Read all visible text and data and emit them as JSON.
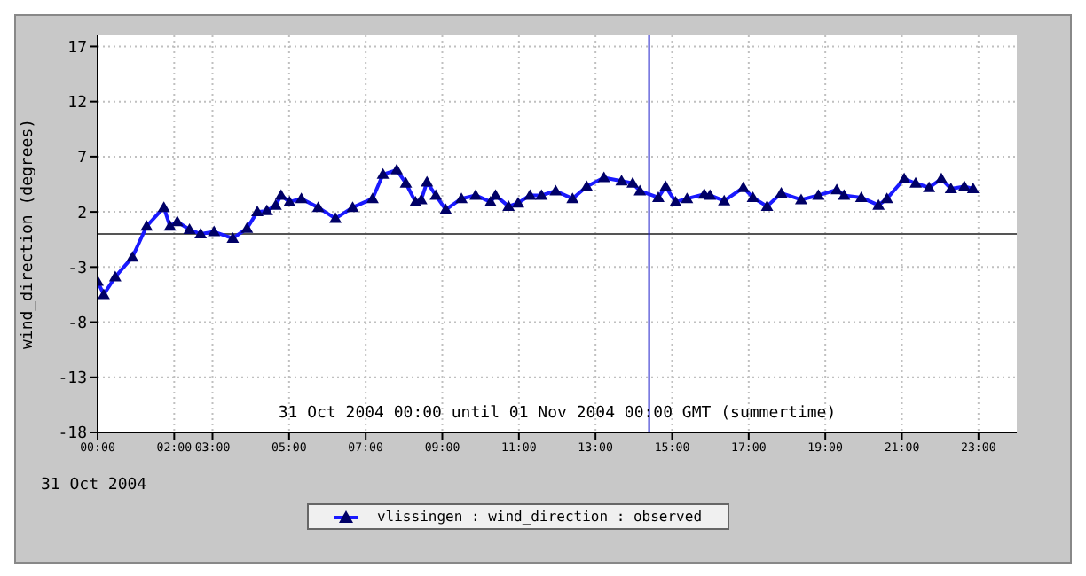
{
  "chart_data": {
    "type": "line",
    "ylabel": "wind_direction (degrees)",
    "annotations": [
      "31 Oct 2004 00:00 until 01 Nov 2004 00:00 GMT (summertime)",
      "31 Oct 2004"
    ],
    "x": [
      0.0,
      0.16,
      0.46,
      0.91,
      1.28,
      1.73,
      1.89,
      2.08,
      2.4,
      2.69,
      3.04,
      3.53,
      3.9,
      4.17,
      4.42,
      4.65,
      4.79,
      5.01,
      5.32,
      5.76,
      6.21,
      6.66,
      7.18,
      7.45,
      7.81,
      8.05,
      8.3,
      8.45,
      8.6,
      8.83,
      9.09,
      9.5,
      9.87,
      10.26,
      10.39,
      10.73,
      10.98,
      11.29,
      11.59,
      11.96,
      12.4,
      12.77,
      13.22,
      13.68,
      13.97,
      14.16,
      14.64,
      14.83,
      15.09,
      15.39,
      15.84,
      15.99,
      16.36,
      16.86,
      17.11,
      17.48,
      17.85,
      18.37,
      18.82,
      19.3,
      19.49,
      19.94,
      20.39,
      20.61,
      21.06,
      21.36,
      21.71,
      22.03,
      22.28,
      22.63,
      22.86
    ],
    "series": [
      {
        "name": "vlissingen : wind_direction : observed",
        "color": "#1a1aff",
        "values": [
          -4.3,
          -5.5,
          -3.9,
          -2.1,
          0.7,
          2.4,
          0.7,
          1.1,
          0.4,
          0.0,
          0.2,
          -0.4,
          0.5,
          2.0,
          2.1,
          2.6,
          3.5,
          2.9,
          3.2,
          2.4,
          1.4,
          2.4,
          3.2,
          5.4,
          5.8,
          4.6,
          2.9,
          3.1,
          4.7,
          3.5,
          2.2,
          3.2,
          3.5,
          2.9,
          3.5,
          2.5,
          2.8,
          3.5,
          3.5,
          3.9,
          3.2,
          4.3,
          5.1,
          4.8,
          4.6,
          3.9,
          3.3,
          4.3,
          2.9,
          3.2,
          3.6,
          3.5,
          3.0,
          4.2,
          3.3,
          2.5,
          3.7,
          3.1,
          3.5,
          4.0,
          3.5,
          3.3,
          2.6,
          3.2,
          5.0,
          4.6,
          4.2,
          5.0,
          4.1,
          4.3,
          4.1
        ]
      }
    ],
    "xlim": [
      0,
      24
    ],
    "xticks": [
      {
        "value": 0,
        "label": "00:00"
      },
      {
        "value": 2,
        "label": "02:00"
      },
      {
        "value": 3,
        "label": "03:00"
      },
      {
        "value": 5,
        "label": "05:00"
      },
      {
        "value": 7,
        "label": "07:00"
      },
      {
        "value": 9,
        "label": "09:00"
      },
      {
        "value": 11,
        "label": "11:00"
      },
      {
        "value": 13,
        "label": "13:00"
      },
      {
        "value": 15,
        "label": "15:00"
      },
      {
        "value": 17,
        "label": "17:00"
      },
      {
        "value": 19,
        "label": "19:00"
      },
      {
        "value": 21,
        "label": "21:00"
      },
      {
        "value": 23,
        "label": "23:00"
      }
    ],
    "ylim": [
      -18,
      18
    ],
    "yticks": [
      -18,
      -13,
      -8,
      -3,
      2,
      7,
      12,
      17
    ],
    "ref_lines": [
      {
        "axis": "y",
        "value": 0,
        "label": null,
        "color": "#555555"
      },
      {
        "axis": "x",
        "value": 14.4,
        "label": null,
        "color": "#2222cc"
      }
    ],
    "grid": true,
    "legend": "bottom",
    "marker": "triangle",
    "line_style": "solid"
  }
}
